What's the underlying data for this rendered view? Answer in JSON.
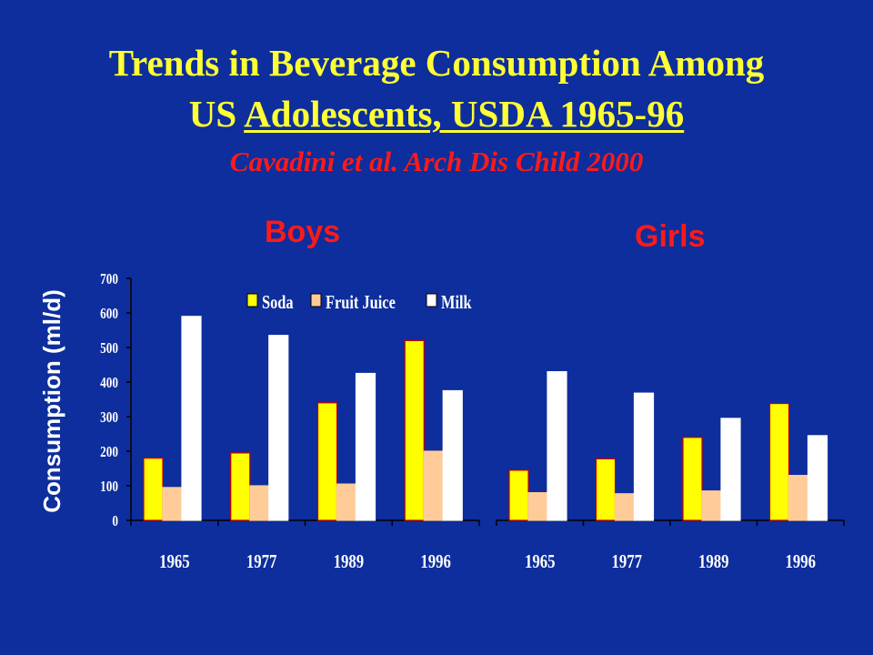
{
  "title": {
    "line1": "Trends in Beverage Consumption Among",
    "line2_plain": "US ",
    "line2_underlined": "Adolescents, USDA 1965-96",
    "citation": "Cavadini et al. Arch Dis Child 2000"
  },
  "colors": {
    "background": "#0d2e9c",
    "soda": "#ffff00",
    "soda_border": "#cc0000",
    "fruit_juice": "#ffcc99",
    "milk": "#ffffff"
  },
  "chart_data": [
    {
      "type": "bar",
      "title": "Boys",
      "ylabel": "Consumption (ml/d)",
      "categories": [
        "1965",
        "1977",
        "1989",
        "1996"
      ],
      "yticks": [
        0,
        100,
        200,
        300,
        400,
        500,
        600,
        700
      ],
      "ylim": [
        0,
        700
      ],
      "legend_position": "top",
      "series": [
        {
          "name": "Soda",
          "values": [
            180,
            195,
            340,
            520
          ]
        },
        {
          "name": "Fruit Juice",
          "values": [
            95,
            100,
            105,
            200
          ]
        },
        {
          "name": "Milk",
          "values": [
            590,
            535,
            425,
            375
          ]
        }
      ]
    },
    {
      "type": "bar",
      "title": "Girls",
      "categories": [
        "1965",
        "1977",
        "1989",
        "1996"
      ],
      "ylim": [
        0,
        700
      ],
      "series": [
        {
          "name": "Soda",
          "values": [
            145,
            178,
            240,
            338
          ]
        },
        {
          "name": "Fruit Juice",
          "values": [
            80,
            77,
            85,
            130
          ]
        },
        {
          "name": "Milk",
          "values": [
            430,
            368,
            295,
            245
          ]
        }
      ]
    }
  ]
}
